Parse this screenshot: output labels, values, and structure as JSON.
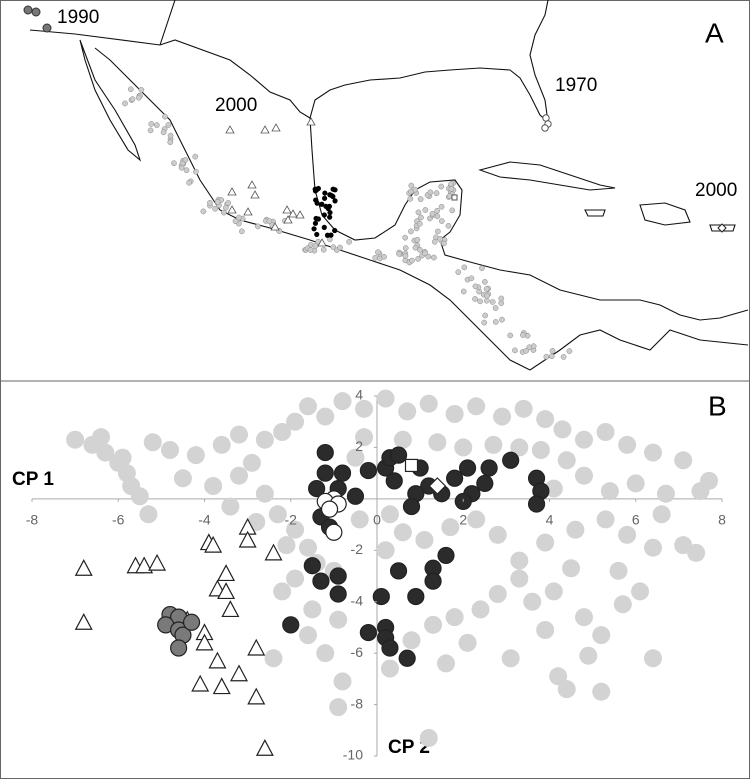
{
  "panel_a": {
    "label": "A",
    "annotations": [
      "1990",
      "2000",
      "1970",
      "2000"
    ]
  },
  "chart_data": {
    "type": "scatter",
    "panel_label": "B",
    "x_label": "CP 1",
    "y_label": "CP 2",
    "xlim": [
      -8,
      8
    ],
    "ylim": [
      -10,
      4
    ],
    "xticks": [
      -8,
      -6,
      -4,
      -2,
      0,
      2,
      4,
      6,
      8
    ],
    "yticks": [
      -10,
      -8,
      -6,
      -4,
      -2,
      2,
      4
    ],
    "series": [
      {
        "color": "#d3d3d3",
        "marker": "circle",
        "x": [
          -7,
          -6.6,
          -6.3,
          -6,
          -5.8,
          -5.7,
          -5.5,
          -5.3,
          -5.9,
          -6.4,
          -5.2,
          -4.8,
          -4.2,
          -3.6,
          -3.2,
          -2.9,
          -2.6,
          -2.2,
          -1.9,
          -1.6,
          -1.2,
          -0.8,
          -0.3,
          0.2,
          0.7,
          1.2,
          1.8,
          2.3,
          2.9,
          3.4,
          3.9,
          4.3,
          4.8,
          5.3,
          5.8,
          6.4,
          7.1,
          7.7,
          7.5,
          6.7,
          6,
          5.4,
          4.8,
          4.4,
          -4.5,
          -3.8,
          -3.2,
          -2.6,
          -2.3,
          -1.9,
          -2.1,
          -1.6,
          -1.4,
          -1.9,
          -2.2,
          -1.5,
          -0.9,
          -1.6,
          -1.2,
          -2.4,
          -0.8,
          -0.9,
          0.3,
          0.8,
          1.3,
          1.8,
          2.4,
          2.1,
          1.6,
          2.8,
          3.3,
          3.6,
          4.1,
          4.5,
          4.8,
          5.2,
          4.9,
          3.9,
          3.1,
          4.2,
          4.4,
          5.2,
          6.4,
          7.4,
          7.1,
          6.4,
          5.8,
          5.3,
          4.6,
          3.9,
          3.3,
          2.8,
          2.3,
          1.7,
          1.1,
          0.6,
          0.2,
          0.3,
          -0.4,
          -0.5,
          -0.3,
          0.6,
          1.4,
          2,
          2.7,
          3.3,
          3.8,
          4.1,
          5.6,
          6.1,
          5.7,
          6.6,
          -2.8,
          -3.4,
          1.2,
          -1
        ],
        "values": [
          2.3,
          2.1,
          1.8,
          1.4,
          1,
          0.5,
          0.1,
          -0.6,
          1.6,
          2.4,
          2.2,
          1.9,
          1.7,
          2.1,
          2.5,
          1.4,
          2.3,
          2.6,
          3,
          3.6,
          3.2,
          3.8,
          3.5,
          3.9,
          3.4,
          3.7,
          3.3,
          3.6,
          3.2,
          3.5,
          3.1,
          2.7,
          2.3,
          2.6,
          2.1,
          1.8,
          1.5,
          0.7,
          0.3,
          0.2,
          0.6,
          0.3,
          0.9,
          1.5,
          0.8,
          0.5,
          0.9,
          0.2,
          -0.6,
          -1.2,
          -1.8,
          -1.9,
          -2.5,
          -3.1,
          -3.6,
          -4.3,
          -4.7,
          -5.3,
          -6,
          -6.2,
          -7.1,
          -8.1,
          -6.6,
          -5.5,
          -4.9,
          -4.6,
          -4.3,
          -5.6,
          -6.4,
          -3.7,
          -3.1,
          -4,
          -3.6,
          -2.7,
          -4.6,
          -5.3,
          -6.1,
          -5.1,
          -6.2,
          -6.9,
          -7.4,
          -7.5,
          -6.2,
          -2.1,
          -1.8,
          -1.9,
          -1.4,
          -0.8,
          -1.2,
          -1.7,
          -2.4,
          -1.4,
          -0.8,
          -1.1,
          -1.6,
          -1.3,
          -2,
          -0.6,
          -0.8,
          1.6,
          2.4,
          2.3,
          2.2,
          2,
          2.1,
          2,
          1.9,
          0.4,
          -2.8,
          -3.6,
          -4.1,
          -0.6,
          -0.9,
          -0.3,
          -9.3,
          -2.8
        ]
      },
      {
        "color": "#ffffff",
        "marker": "triangle",
        "x": [
          -6.8,
          -5.6,
          -5.4,
          -5.1,
          -3.9,
          -3.8,
          -3,
          -3,
          -2.4,
          -3.5,
          -3.7,
          -3.5,
          -3.4,
          -4.4,
          -4,
          -6.8,
          -4,
          -2.8,
          -3.7,
          -3.2,
          -4.1,
          -3.6,
          -2.8,
          -2.6
        ],
        "values": [
          -2.7,
          -2.6,
          -2.6,
          -2.5,
          -1.7,
          -1.8,
          -1.1,
          -1.6,
          -2.1,
          -2.9,
          -3.5,
          -3.6,
          -4.3,
          -4.7,
          -5.2,
          -4.8,
          -5.6,
          -5.8,
          -6.3,
          -6.8,
          -7.2,
          -7.3,
          -7.7,
          -9.7
        ]
      },
      {
        "color": "#7a7a7a",
        "marker": "circle",
        "x": [
          -4.8,
          -4.6,
          -4.9,
          -4.6,
          -4.5,
          -4.6,
          -4.3
        ],
        "values": [
          -4.5,
          -4.6,
          -4.9,
          -5.1,
          -5.3,
          -5.8,
          -4.8
        ]
      },
      {
        "color": "#2b2b2b",
        "marker": "circle",
        "x": [
          -1.2,
          -1.2,
          -1.4,
          -1.3,
          -1.1,
          -0.9,
          -0.8,
          -0.5,
          -0.2,
          0.2,
          0.3,
          0.5,
          0.4,
          1,
          1.2,
          1.8,
          2.1,
          2.6,
          2.5,
          2.2,
          2,
          3.1,
          3.7,
          3.8,
          3.7,
          1.5,
          0.9,
          0.8,
          1.6,
          1.3,
          0.9,
          -2,
          -1.3,
          -1.5,
          -0.9,
          0.1,
          0.5,
          0.2,
          0.2,
          0.3,
          -0.2,
          0.7,
          1.3,
          -0.9
        ],
        "values": [
          1.8,
          1,
          0.4,
          -0.7,
          -1.1,
          0.4,
          1,
          0.1,
          1.1,
          1.2,
          1.6,
          1.7,
          0.7,
          1.2,
          0.5,
          0.8,
          1.2,
          1.2,
          0.6,
          0.2,
          -0.1,
          1.5,
          0.8,
          0.3,
          -0.2,
          0.2,
          0.2,
          -0.3,
          -2.2,
          -2.7,
          -3.8,
          -4.9,
          -3.2,
          -2.6,
          -3.7,
          -3.8,
          -2.8,
          -5,
          -5.4,
          -5.8,
          -5.2,
          -6.2,
          -3.2,
          -3
        ]
      },
      {
        "color": "#ffffff",
        "marker": "circle",
        "x": [
          -1,
          -1.2,
          -0.9,
          -1.1,
          -1
        ],
        "values": [
          0,
          -0.1,
          -0.2,
          -0.4,
          -1.3
        ]
      },
      {
        "color": "#ffffff",
        "marker": "square",
        "x": [
          0.8
        ],
        "values": [
          1.3
        ]
      },
      {
        "color": "#ffffff",
        "marker": "diamond",
        "x": [
          1.4
        ],
        "values": [
          0.5
        ]
      }
    ]
  }
}
